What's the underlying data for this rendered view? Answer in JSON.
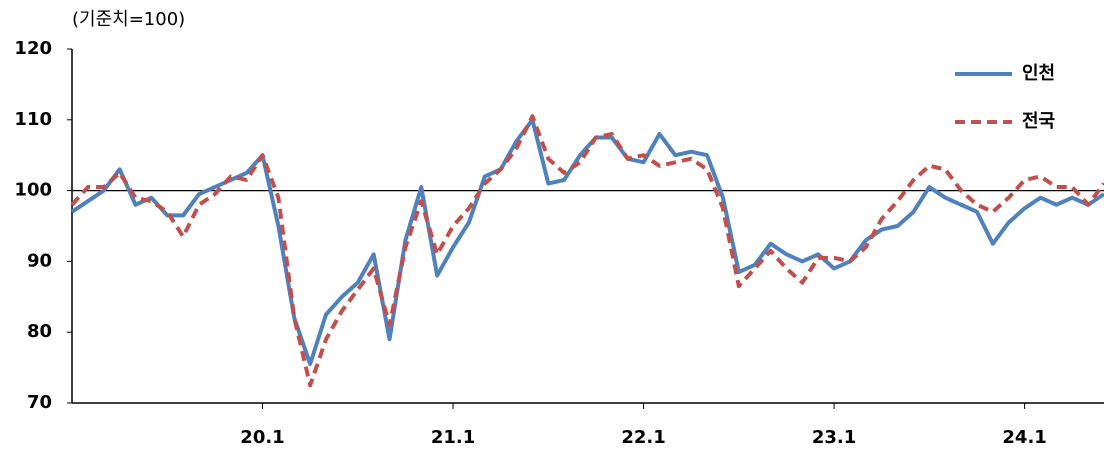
{
  "chart_data": {
    "type": "line",
    "y_label": "(기준치=100)",
    "categories": [
      null,
      null,
      null,
      null,
      null,
      null,
      null,
      null,
      null,
      null,
      null,
      null,
      "20.1",
      null,
      null,
      null,
      null,
      null,
      null,
      null,
      null,
      null,
      null,
      null,
      "21.1",
      null,
      null,
      null,
      null,
      null,
      null,
      null,
      null,
      null,
      null,
      null,
      "22.1",
      null,
      null,
      null,
      null,
      null,
      null,
      null,
      null,
      null,
      null,
      null,
      "23.1",
      null,
      null,
      null,
      null,
      null,
      null,
      null,
      null,
      null,
      null,
      null,
      "24.1",
      null,
      null,
      null,
      null,
      null
    ],
    "series": [
      {
        "name": "인천",
        "color": "#4f81bd",
        "dashed": false,
        "values": [
          97,
          98.5,
          100,
          103,
          98,
          99,
          96.5,
          96.5,
          99.5,
          100.5,
          101.5,
          102.5,
          105,
          95,
          82,
          75.5,
          82.5,
          85,
          87,
          91,
          79,
          93,
          100.5,
          88,
          92,
          95.5,
          102,
          103,
          107,
          110,
          101,
          101.5,
          105,
          107.5,
          107.5,
          104.5,
          104,
          108,
          105,
          105.5,
          105,
          99,
          88.5,
          89.5,
          92.5,
          91,
          90,
          91,
          89,
          90,
          93,
          94.5,
          95,
          97,
          100.5,
          99,
          98,
          97,
          92.5,
          95.5,
          97.5,
          99,
          98,
          99,
          98,
          99.5
        ]
      },
      {
        "name": "전국",
        "color": "#c0504d",
        "dashed": true,
        "values": [
          98,
          100.5,
          100.5,
          102.5,
          99,
          98.5,
          97,
          93.5,
          98,
          99.5,
          102,
          101.5,
          105,
          99,
          82,
          72.5,
          79,
          83,
          86,
          89,
          81,
          92,
          98.5,
          91,
          95,
          97.5,
          101,
          103,
          106,
          110.5,
          104.5,
          102.5,
          104,
          107.5,
          108,
          104.5,
          105,
          103.5,
          104,
          104.5,
          103,
          97.5,
          86.5,
          89,
          91.5,
          89,
          87,
          90.5,
          90.5,
          90,
          92,
          96,
          98.5,
          101.5,
          103.5,
          103,
          100,
          98,
          97,
          99,
          101.5,
          102,
          100.5,
          100.5,
          98,
          101
        ]
      }
    ],
    "ylim": [
      70,
      120
    ],
    "yticks": [
      70,
      80,
      90,
      100,
      110,
      120
    ],
    "reference_line": 100,
    "legend": "top-right",
    "grid": false
  }
}
